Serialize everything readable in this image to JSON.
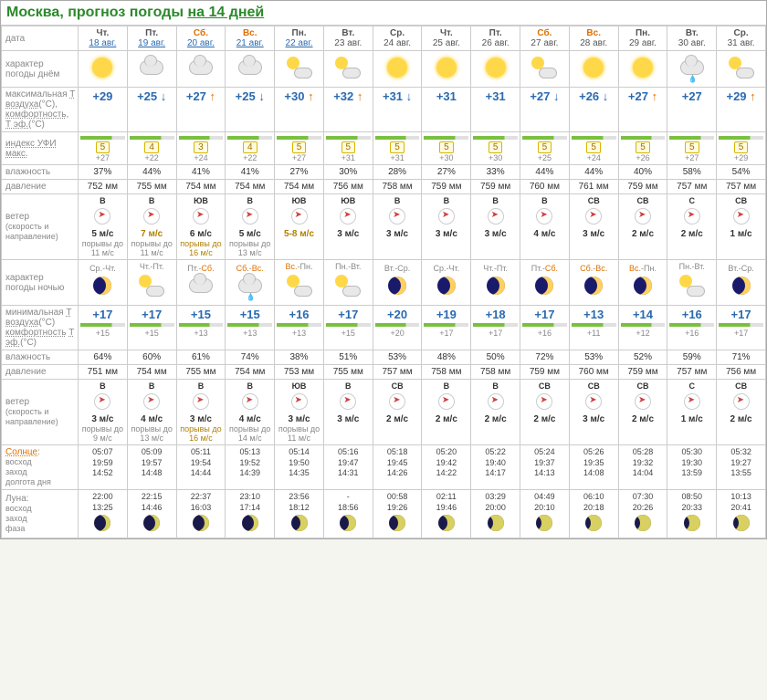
{
  "header": {
    "city": "Москва, прогноз погоды",
    "link": "на 14 дней"
  },
  "rowlabels": {
    "date": "дата",
    "dayweather": "характер погоды днём",
    "tmax": "максимальная",
    "tair": "Т воздуха",
    "comfort": "комфортность",
    "tef": "Т эф.",
    "uv": "индекс УФИ",
    "uvmax": "макс.",
    "humidity": "влажность",
    "pressure": "давление",
    "wind": "ветер",
    "windsub": "(скорость и направление)",
    "nightweather": "характер погоды ночью",
    "tmin": "минимальная",
    "sun": "Солнце",
    "sunsub": "восход\nзаход\nдолгота дня",
    "moon": "Луна:",
    "moonsub": "восход\nзаход\nфаза"
  },
  "days": [
    {
      "dow": "Чт.",
      "date": "18 авг.",
      "linked": true,
      "we": false,
      "tmax": "+29",
      "tef_d": "+27",
      "uv": "5",
      "hum_d": "37%",
      "p_d": "752 мм",
      "wdir_d": "В",
      "ws_d": "5 м/с",
      "gust_d": "порывы до 11 м/с",
      "nspan": "Ср.-Чт.",
      "tmin": "+17",
      "tef_n": "+15",
      "hum_n": "64%",
      "p_n": "751 мм",
      "wdir_n": "В",
      "ws_n": "3 м/с",
      "gust_n": "порывы до 9 м/с",
      "srise": "05:07",
      "sset": "19:59",
      "dlen": "14:52",
      "mrise": "22:00",
      "mset": "13:25"
    },
    {
      "dow": "Пт.",
      "date": "19 авг.",
      "linked": true,
      "we": false,
      "tmax": "+25",
      "tdir": "down",
      "tef_d": "+22",
      "uv": "4",
      "hum_d": "44%",
      "p_d": "755 мм",
      "wdir_d": "В",
      "ws_d": "7 м/с",
      "wswarn": true,
      "gust_d": "порывы до 11 м/с",
      "nspan": "Чт.-Пт.",
      "tmin": "+17",
      "tef_n": "+15",
      "hum_n": "60%",
      "p_n": "754 мм",
      "wdir_n": "В",
      "ws_n": "4 м/с",
      "gust_n": "порывы до 13 м/с",
      "srise": "05:09",
      "sset": "19:57",
      "dlen": "14:48",
      "mrise": "22:15",
      "mset": "14:46"
    },
    {
      "dow": "Сб.",
      "date": "20 авг.",
      "linked": true,
      "we": true,
      "tmax": "+27",
      "tdir": "up",
      "tef_d": "+24",
      "uv": "3",
      "hum_d": "41%",
      "p_d": "754 мм",
      "wdir_d": "ЮВ",
      "ws_d": "6 м/с",
      "gust_d": "порывы до 16 м/с",
      "gustwarn": true,
      "nspan": "Пт.-Сб.",
      "nspanwe": true,
      "tmin": "+15",
      "tef_n": "+13",
      "hum_n": "61%",
      "p_n": "755 мм",
      "wdir_n": "В",
      "ws_n": "3 м/с",
      "gust_n": "порывы до 16 м/с",
      "gustnwarn": true,
      "srise": "05:11",
      "sset": "19:54",
      "dlen": "14:44",
      "mrise": "22:37",
      "mset": "16:03"
    },
    {
      "dow": "Вс.",
      "date": "21 авг.",
      "linked": true,
      "we": true,
      "tmax": "+25",
      "tdir": "down",
      "tef_d": "+22",
      "uv": "4",
      "hum_d": "41%",
      "p_d": "754 мм",
      "wdir_d": "В",
      "ws_d": "5 м/с",
      "gust_d": "порывы до 13 м/с",
      "nspan": "Сб.-Вс.",
      "nspanwe": true,
      "tmin": "+15",
      "tef_n": "+13",
      "hum_n": "74%",
      "p_n": "754 мм",
      "wdir_n": "В",
      "ws_n": "4 м/с",
      "gust_n": "порывы до 14 м/с",
      "srise": "05:13",
      "sset": "19:52",
      "dlen": "14:39",
      "mrise": "23:10",
      "mset": "17:14"
    },
    {
      "dow": "Пн.",
      "date": "22 авг.",
      "linked": true,
      "we": false,
      "tmax": "+30",
      "tdir": "up",
      "tef_d": "+27",
      "uv": "5",
      "hum_d": "27%",
      "p_d": "754 мм",
      "wdir_d": "ЮВ",
      "ws_d": "5-8 м/с",
      "wswarn": true,
      "nspan": "Вс.-Пн.",
      "nspanwe": true,
      "tmin": "+16",
      "tef_n": "+13",
      "hum_n": "38%",
      "p_n": "753 мм",
      "wdir_n": "ЮВ",
      "ws_n": "3 м/с",
      "gust_n": "порывы до 11 м/с",
      "srise": "05:14",
      "sset": "19:50",
      "dlen": "14:35",
      "mrise": "23:56",
      "mset": "18:12"
    },
    {
      "dow": "Вт.",
      "date": "23 авг.",
      "linked": false,
      "we": false,
      "tmax": "+32",
      "tdir": "up",
      "tef_d": "+31",
      "uv": "5",
      "hum_d": "30%",
      "p_d": "756 мм",
      "wdir_d": "ЮВ",
      "ws_d": "3 м/с",
      "nspan": "Пн.-Вт.",
      "tmin": "+17",
      "tef_n": "+15",
      "hum_n": "51%",
      "p_n": "755 мм",
      "wdir_n": "В",
      "ws_n": "3 м/с",
      "srise": "05:16",
      "sset": "19:47",
      "dlen": "14:31",
      "mrise": "-",
      "mset": "18:56"
    },
    {
      "dow": "Ср.",
      "date": "24 авг.",
      "linked": false,
      "we": false,
      "tmax": "+31",
      "tdir": "down",
      "tef_d": "+31",
      "uv": "5",
      "hum_d": "28%",
      "p_d": "758 мм",
      "wdir_d": "В",
      "ws_d": "3 м/с",
      "nspan": "Вт.-Ср.",
      "tmin": "+20",
      "tef_n": "+20",
      "hum_n": "53%",
      "p_n": "757 мм",
      "wdir_n": "СВ",
      "ws_n": "2 м/с",
      "srise": "05:18",
      "sset": "19:45",
      "dlen": "14:26",
      "mrise": "00:58",
      "mset": "19:26"
    },
    {
      "dow": "Чт.",
      "date": "25 авг.",
      "linked": false,
      "we": false,
      "tmax": "+31",
      "tef_d": "+30",
      "uv": "5",
      "hum_d": "27%",
      "p_d": "759 мм",
      "wdir_d": "В",
      "ws_d": "3 м/с",
      "nspan": "Ср.-Чт.",
      "tmin": "+19",
      "tef_n": "+17",
      "hum_n": "48%",
      "p_n": "758 мм",
      "wdir_n": "В",
      "ws_n": "2 м/с",
      "srise": "05:20",
      "sset": "19:42",
      "dlen": "14:22",
      "mrise": "02:11",
      "mset": "19:46"
    },
    {
      "dow": "Пт.",
      "date": "26 авг.",
      "linked": false,
      "we": false,
      "tmax": "+31",
      "tef_d": "+30",
      "uv": "5",
      "hum_d": "33%",
      "p_d": "759 мм",
      "wdir_d": "В",
      "ws_d": "3 м/с",
      "nspan": "Чт.-Пт.",
      "tmin": "+18",
      "tef_n": "+17",
      "hum_n": "50%",
      "p_n": "758 мм",
      "wdir_n": "В",
      "ws_n": "2 м/с",
      "srise": "05:22",
      "sset": "19:40",
      "dlen": "14:17",
      "mrise": "03:29",
      "mset": "20:00"
    },
    {
      "dow": "Сб.",
      "date": "27 авг.",
      "linked": false,
      "we": true,
      "tmax": "+27",
      "tdir": "down",
      "tef_d": "+25",
      "uv": "5",
      "hum_d": "44%",
      "p_d": "760 мм",
      "wdir_d": "В",
      "ws_d": "4 м/с",
      "nspan": "Пт.-Сб.",
      "nspanwe": true,
      "tmin": "+17",
      "tef_n": "+16",
      "hum_n": "72%",
      "p_n": "759 мм",
      "wdir_n": "СВ",
      "ws_n": "2 м/с",
      "srise": "05:24",
      "sset": "19:37",
      "dlen": "14:13",
      "mrise": "04:49",
      "mset": "20:10"
    },
    {
      "dow": "Вс.",
      "date": "28 авг.",
      "linked": false,
      "we": true,
      "tmax": "+26",
      "tdir": "down",
      "tef_d": "+24",
      "uv": "5",
      "hum_d": "44%",
      "p_d": "761 мм",
      "wdir_d": "СВ",
      "ws_d": "3 м/с",
      "nspan": "Сб.-Вс.",
      "nspanwe": true,
      "tmin": "+13",
      "tef_n": "+11",
      "hum_n": "53%",
      "p_n": "760 мм",
      "wdir_n": "СВ",
      "ws_n": "3 м/с",
      "srise": "05:26",
      "sset": "19:35",
      "dlen": "14:08",
      "mrise": "06:10",
      "mset": "20:18"
    },
    {
      "dow": "Пн.",
      "date": "29 авг.",
      "linked": false,
      "we": false,
      "tmax": "+27",
      "tdir": "up",
      "tef_d": "+26",
      "uv": "5",
      "hum_d": "40%",
      "p_d": "759 мм",
      "wdir_d": "СВ",
      "ws_d": "2 м/с",
      "nspan": "Вс.-Пн.",
      "nspanwe": true,
      "tmin": "+14",
      "tef_n": "+12",
      "hum_n": "52%",
      "p_n": "759 мм",
      "wdir_n": "СВ",
      "ws_n": "2 м/с",
      "srise": "05:28",
      "sset": "19:32",
      "dlen": "14:04",
      "mrise": "07:30",
      "mset": "20:26"
    },
    {
      "dow": "Вт.",
      "date": "30 авг.",
      "linked": false,
      "we": false,
      "tmax": "+27",
      "tef_d": "+27",
      "uv": "5",
      "hum_d": "58%",
      "p_d": "757 мм",
      "wdir_d": "С",
      "ws_d": "2 м/с",
      "nspan": "Пн.-Вт.",
      "tmin": "+16",
      "tef_n": "+16",
      "hum_n": "59%",
      "p_n": "757 мм",
      "wdir_n": "С",
      "ws_n": "1 м/с",
      "srise": "05:30",
      "sset": "19:30",
      "dlen": "13:59",
      "mrise": "08:50",
      "mset": "20:33"
    },
    {
      "dow": "Ср.",
      "date": "31 авг.",
      "linked": false,
      "we": false,
      "tmax": "+29",
      "tdir": "up",
      "tef_d": "+29",
      "uv": "5",
      "hum_d": "54%",
      "p_d": "757 мм",
      "wdir_d": "СВ",
      "ws_d": "1 м/с",
      "nspan": "Вт.-Ср.",
      "tmin": "+17",
      "tef_n": "+17",
      "hum_n": "71%",
      "p_n": "756 мм",
      "wdir_n": "СВ",
      "ws_n": "2 м/с",
      "srise": "05:32",
      "sset": "19:27",
      "dlen": "13:55",
      "mrise": "10:13",
      "mset": "20:41"
    }
  ],
  "icons_day": [
    "sun",
    "cloud",
    "cloud",
    "cloud",
    "partly",
    "partly",
    "sun",
    "sun",
    "sun",
    "partly",
    "sun",
    "sun",
    "rain",
    "partly"
  ],
  "icons_night": [
    "night",
    "partly",
    "cloud",
    "rain",
    "partly",
    "partly",
    "night",
    "night",
    "night",
    "night",
    "night",
    "night",
    "partly",
    "night"
  ]
}
